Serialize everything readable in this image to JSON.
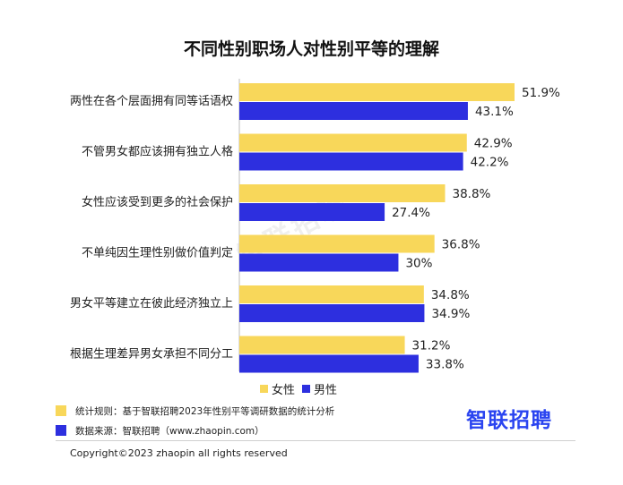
{
  "title": "不同性别职场人对性别平等的理解",
  "colors": {
    "female": "#f8d75a",
    "male": "#2d2fdf",
    "brand": "#2a44f0"
  },
  "chart_data": {
    "type": "bar",
    "orientation": "horizontal",
    "categories": [
      "两性在各个层面拥有同等话语权",
      "不管男女都应该拥有独立人格",
      "女性应该受到更多的社会保护",
      "不单纯因生理性别做价值判定",
      "男女平等建立在彼此经济独立上",
      "根据生理差异男女承担不同分工"
    ],
    "series": [
      {
        "name": "女性",
        "values": [
          51.9,
          42.9,
          38.8,
          36.8,
          34.8,
          31.2
        ],
        "labels": [
          "51.9%",
          "42.9%",
          "38.8%",
          "36.8%",
          "34.8%",
          "31.2%"
        ]
      },
      {
        "name": "男性",
        "values": [
          43.1,
          42.2,
          27.4,
          30,
          34.9,
          33.8
        ],
        "labels": [
          "43.1%",
          "42.2%",
          "27.4%",
          "30%",
          "34.9%",
          "33.8%"
        ]
      }
    ],
    "xlim": [
      0,
      55
    ],
    "legend": "bottom-center"
  },
  "legend": {
    "female": "女性",
    "male": "男性"
  },
  "notes": {
    "rule": "统计规则：基于智联招聘2023年性别平等调研数据的统计分析",
    "source": "数据来源：智联招聘（www.zhaopin.com）"
  },
  "brand": "智联招聘",
  "watermark": "智联招聘",
  "copyright": "Copyright©2023 zhaopin all rights reserved"
}
